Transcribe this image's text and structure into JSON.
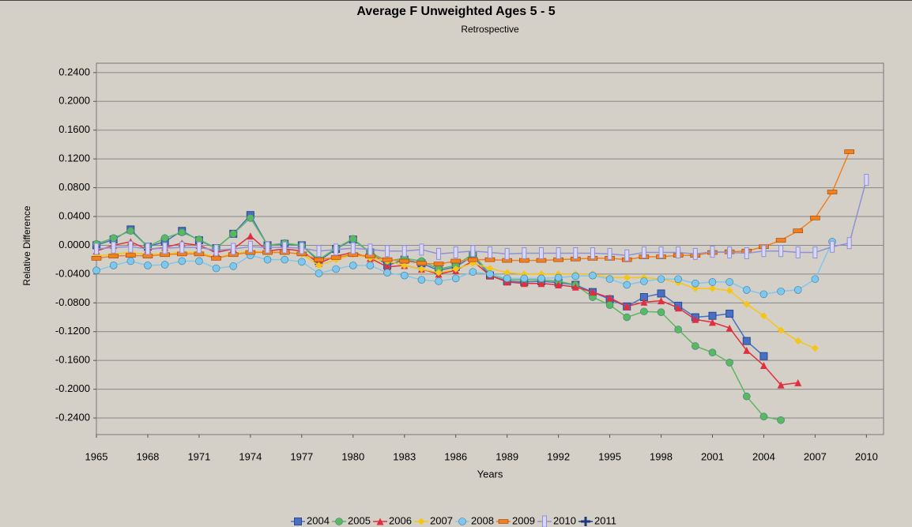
{
  "chart_data": {
    "type": "line",
    "title": "Average F Unweighted Ages 5 - 5",
    "subtitle": "Retrospective",
    "x_label": "Years",
    "y_label": "Relative Difference",
    "grid": true,
    "legend": "bottom",
    "x": [
      1965,
      1966,
      1967,
      1968,
      1969,
      1970,
      1971,
      1972,
      1973,
      1974,
      1975,
      1976,
      1977,
      1978,
      1979,
      1980,
      1981,
      1982,
      1983,
      1984,
      1985,
      1986,
      1987,
      1988,
      1989,
      1990,
      1991,
      1992,
      1993,
      1994,
      1995,
      1996,
      1997,
      1998,
      1999,
      2000,
      2001,
      2002,
      2003,
      2004,
      2005,
      2006,
      2007,
      2008,
      2009,
      2010,
      2011
    ],
    "xlim": [
      1965,
      2011
    ],
    "xticks": [
      1965,
      1968,
      1971,
      1974,
      1977,
      1980,
      1983,
      1986,
      1989,
      1992,
      1995,
      1998,
      2001,
      2004,
      2007,
      2010
    ],
    "ylim": [
      -0.263,
      0.253
    ],
    "yticks": [
      {
        "value": 0.24,
        "label": "0.2400"
      },
      {
        "value": 0.2,
        "label": "0.2000"
      },
      {
        "value": 0.16,
        "label": "0.1600"
      },
      {
        "value": 0.12,
        "label": "0.1200"
      },
      {
        "value": 0.08,
        "label": "0.0800"
      },
      {
        "value": 0.04,
        "label": "0.0400"
      },
      {
        "value": 0,
        "label": "0.0000"
      },
      {
        "value": -0.04,
        "label": "-0.0400"
      },
      {
        "value": -0.08,
        "label": "-0.0800"
      },
      {
        "value": -0.12,
        "label": "-0.1200"
      },
      {
        "value": -0.16,
        "label": "-0.1600"
      },
      {
        "value": -0.2,
        "label": "-0.2000"
      },
      {
        "value": -0.24,
        "label": "-0.2400"
      }
    ],
    "series": [
      {
        "name": "2004",
        "color": "#4a70c4",
        "marker": "square",
        "values": [
          0.0,
          0.008,
          0.022,
          -0.002,
          0.005,
          0.02,
          0.007,
          -0.004,
          0.016,
          0.042,
          0.0,
          0.002,
          0.0,
          -0.022,
          -0.005,
          0.008,
          -0.01,
          -0.028,
          -0.02,
          -0.025,
          -0.035,
          -0.03,
          -0.015,
          -0.042,
          -0.05,
          -0.051,
          -0.05,
          -0.052,
          -0.055,
          -0.065,
          -0.075,
          -0.085,
          -0.072,
          -0.067,
          -0.084,
          -0.1,
          -0.098,
          -0.095,
          -0.133,
          -0.154,
          null,
          null,
          null,
          null,
          null,
          null,
          null
        ]
      },
      {
        "name": "2005",
        "color": "#5cb85c",
        "marker": "circle",
        "values": [
          0.002,
          0.01,
          0.02,
          -0.002,
          0.01,
          0.018,
          0.008,
          -0.004,
          0.016,
          0.038,
          0.0,
          0.003,
          0.0,
          -0.02,
          -0.004,
          0.009,
          -0.01,
          -0.022,
          -0.018,
          -0.022,
          -0.033,
          -0.028,
          -0.012,
          -0.04,
          -0.048,
          -0.048,
          -0.048,
          -0.05,
          -0.055,
          -0.072,
          -0.083,
          -0.1,
          -0.092,
          -0.093,
          -0.117,
          -0.14,
          -0.149,
          -0.163,
          -0.21,
          -0.238,
          -0.243,
          null,
          null,
          null,
          null,
          null,
          null
        ]
      },
      {
        "name": "2006",
        "color": "#e03040",
        "marker": "triangle",
        "values": [
          -0.008,
          0.0,
          0.005,
          -0.006,
          -0.003,
          0.003,
          0.0,
          -0.01,
          -0.005,
          0.013,
          -0.008,
          -0.005,
          -0.008,
          -0.025,
          -0.015,
          -0.01,
          -0.018,
          -0.03,
          -0.028,
          -0.033,
          -0.04,
          -0.035,
          -0.022,
          -0.042,
          -0.051,
          -0.053,
          -0.053,
          -0.055,
          -0.058,
          -0.065,
          -0.073,
          -0.085,
          -0.079,
          -0.077,
          -0.087,
          -0.103,
          -0.107,
          -0.115,
          -0.146,
          -0.167,
          -0.194,
          -0.191,
          null,
          null,
          null,
          null,
          null
        ]
      },
      {
        "name": "2007",
        "color": "#f5c518",
        "marker": "diamond",
        "values": [
          -0.015,
          -0.012,
          -0.01,
          -0.013,
          -0.012,
          -0.01,
          -0.01,
          -0.017,
          -0.012,
          -0.008,
          -0.01,
          -0.01,
          -0.012,
          -0.028,
          -0.02,
          -0.013,
          -0.018,
          -0.022,
          -0.028,
          -0.033,
          -0.038,
          -0.033,
          -0.025,
          -0.032,
          -0.038,
          -0.04,
          -0.04,
          -0.04,
          -0.04,
          -0.04,
          -0.045,
          -0.045,
          -0.045,
          -0.047,
          -0.052,
          -0.06,
          -0.06,
          -0.063,
          -0.082,
          -0.098,
          -0.118,
          -0.133,
          -0.143,
          null,
          null,
          null,
          null
        ]
      },
      {
        "name": "2008",
        "color": "#7ec8f0",
        "marker": "circle",
        "values": [
          -0.035,
          -0.028,
          -0.022,
          -0.028,
          -0.027,
          -0.022,
          -0.022,
          -0.032,
          -0.029,
          -0.014,
          -0.02,
          -0.02,
          -0.023,
          -0.039,
          -0.033,
          -0.028,
          -0.028,
          -0.038,
          -0.042,
          -0.048,
          -0.05,
          -0.046,
          -0.037,
          -0.04,
          -0.046,
          -0.046,
          -0.046,
          -0.045,
          -0.043,
          -0.042,
          -0.047,
          -0.055,
          -0.05,
          -0.047,
          -0.047,
          -0.053,
          -0.051,
          -0.051,
          -0.062,
          -0.068,
          -0.064,
          -0.062,
          -0.047,
          0.005,
          null,
          null,
          null
        ]
      },
      {
        "name": "2009",
        "color": "#f08020",
        "marker": "dash",
        "values": [
          -0.018,
          -0.015,
          -0.014,
          -0.015,
          -0.013,
          -0.012,
          -0.012,
          -0.018,
          -0.013,
          -0.01,
          -0.01,
          -0.01,
          -0.012,
          -0.02,
          -0.017,
          -0.013,
          -0.015,
          -0.02,
          -0.022,
          -0.025,
          -0.026,
          -0.022,
          -0.02,
          -0.02,
          -0.021,
          -0.021,
          -0.021,
          -0.02,
          -0.019,
          -0.018,
          -0.018,
          -0.02,
          -0.016,
          -0.016,
          -0.014,
          -0.014,
          -0.01,
          -0.009,
          -0.008,
          -0.002,
          0.007,
          0.02,
          0.038,
          0.074,
          0.13,
          null,
          null
        ]
      },
      {
        "name": "2010",
        "color": "#9090d8",
        "marker": "bar",
        "values": [
          -0.005,
          -0.003,
          -0.002,
          -0.005,
          -0.004,
          -0.003,
          -0.003,
          -0.007,
          -0.005,
          -0.002,
          -0.003,
          -0.003,
          -0.004,
          -0.008,
          -0.006,
          -0.004,
          -0.006,
          -0.008,
          -0.008,
          -0.006,
          -0.012,
          -0.01,
          -0.008,
          -0.01,
          -0.012,
          -0.011,
          -0.011,
          -0.011,
          -0.011,
          -0.011,
          -0.012,
          -0.014,
          -0.01,
          -0.01,
          -0.01,
          -0.012,
          -0.009,
          -0.01,
          -0.011,
          -0.008,
          -0.008,
          -0.01,
          -0.01,
          -0.002,
          0.003,
          0.091,
          null
        ]
      },
      {
        "name": "2011",
        "color": "#203878",
        "marker": "plus",
        "values": [
          null,
          null,
          null,
          null,
          null,
          null,
          null,
          null,
          null,
          null,
          null,
          null,
          null,
          null,
          null,
          null,
          null,
          null,
          null,
          null,
          null,
          null,
          null,
          null,
          null,
          null,
          null,
          null,
          null,
          null,
          null,
          null,
          null,
          null,
          null,
          null,
          null,
          null,
          null,
          null,
          null,
          null,
          null,
          null,
          null,
          null,
          null
        ]
      }
    ]
  }
}
